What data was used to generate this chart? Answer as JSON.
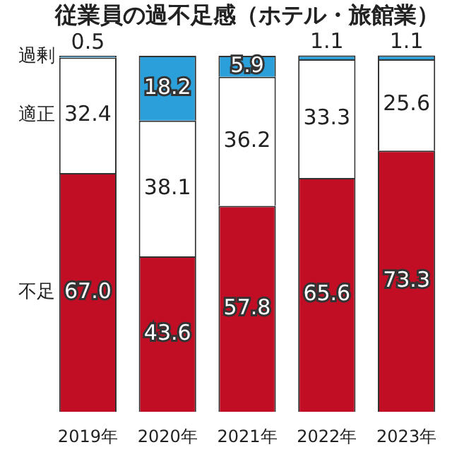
{
  "chart_data": {
    "type": "bar",
    "title": "従業員の過不足感（ホテル・旅館業）",
    "stacked": true,
    "tick_labels": "x",
    "grid": false,
    "legend": false,
    "ylim": [
      0,
      100
    ],
    "categories": [
      "2019年",
      "2020年",
      "2021年",
      "2022年",
      "2023年"
    ],
    "series": [
      {
        "name": "不足",
        "color": "#c20e24",
        "values": [
          67.0,
          43.6,
          57.8,
          65.6,
          73.3
        ],
        "value_labels": [
          "67.0",
          "43.6",
          "57.8",
          "65.6",
          "73.3"
        ]
      },
      {
        "name": "適正",
        "color": "#ffffff",
        "values": [
          32.4,
          38.1,
          36.2,
          33.3,
          25.6
        ],
        "value_labels": [
          "32.4",
          "38.1",
          "36.2",
          "33.3",
          "25.6"
        ]
      },
      {
        "name": "過剰",
        "color": "#2b9fd9",
        "values": [
          0.5,
          18.2,
          5.9,
          1.1,
          1.1
        ],
        "value_labels": [
          "0.5",
          "18.2",
          "5.9",
          "1.1",
          "1.1"
        ]
      }
    ]
  }
}
